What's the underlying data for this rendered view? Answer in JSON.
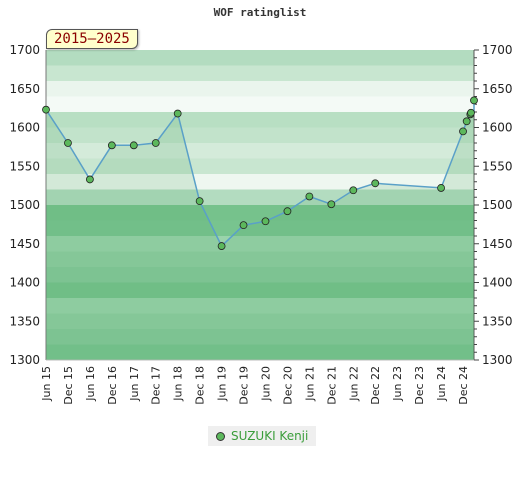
{
  "header": {
    "title": "WOF ratinglist",
    "badge": "2015–2025"
  },
  "legend": {
    "series_name": "SUZUKI Kenji"
  },
  "colors": {
    "line": "#5aa0c8",
    "marker": "#5cb85c",
    "legend_text": "#3a9d3a"
  },
  "chart_data": {
    "type": "line",
    "title": "WOF ratinglist",
    "xlabel": "",
    "ylabel": "",
    "ylim": [
      1300,
      1700
    ],
    "yticks": [
      1300,
      1350,
      1400,
      1450,
      1500,
      1550,
      1600,
      1650,
      1700
    ],
    "xlim": [
      "2015-06",
      "2025-03"
    ],
    "xtick_labels": [
      "Jun 15",
      "Dec 15",
      "Jun 16",
      "Dec 16",
      "Jun 17",
      "Dec 17",
      "Jun 18",
      "Dec 18",
      "Jun 19",
      "Dec 19",
      "Jun 20",
      "Dec 20",
      "Jun 21",
      "Dec 21",
      "Jun 22",
      "Dec 22",
      "Jun 23",
      "Dec 23",
      "Jun 24",
      "Dec 24"
    ],
    "xtick_dates": [
      "2015-06",
      "2015-12",
      "2016-06",
      "2016-12",
      "2017-06",
      "2017-12",
      "2018-06",
      "2018-12",
      "2019-06",
      "2019-12",
      "2020-06",
      "2020-12",
      "2021-06",
      "2021-12",
      "2022-06",
      "2022-12",
      "2023-06",
      "2023-12",
      "2024-06",
      "2024-12"
    ],
    "series": [
      {
        "name": "SUZUKI Kenji",
        "points": [
          {
            "x": "2015-06",
            "y": 1623
          },
          {
            "x": "2015-12",
            "y": 1580
          },
          {
            "x": "2016-06",
            "y": 1533
          },
          {
            "x": "2016-12",
            "y": 1577
          },
          {
            "x": "2017-06",
            "y": 1577
          },
          {
            "x": "2017-12",
            "y": 1580
          },
          {
            "x": "2018-06",
            "y": 1618
          },
          {
            "x": "2018-12",
            "y": 1505
          },
          {
            "x": "2019-06",
            "y": 1447
          },
          {
            "x": "2019-12",
            "y": 1474
          },
          {
            "x": "2020-06",
            "y": 1479
          },
          {
            "x": "2020-12",
            "y": 1492
          },
          {
            "x": "2021-06",
            "y": 1511
          },
          {
            "x": "2021-12",
            "y": 1501
          },
          {
            "x": "2022-06",
            "y": 1519
          },
          {
            "x": "2022-12",
            "y": 1528
          },
          {
            "x": "2024-06",
            "y": 1522
          },
          {
            "x": "2024-12",
            "y": 1595
          },
          {
            "x": "2025-01",
            "y": 1608
          },
          {
            "x": "2025-02",
            "y": 1617
          },
          {
            "x": "2025-03",
            "y": 1619
          },
          {
            "x": "2025-03",
            "y": 1635
          }
        ]
      }
    ],
    "grid": true,
    "legend_position": "bottom-center"
  }
}
